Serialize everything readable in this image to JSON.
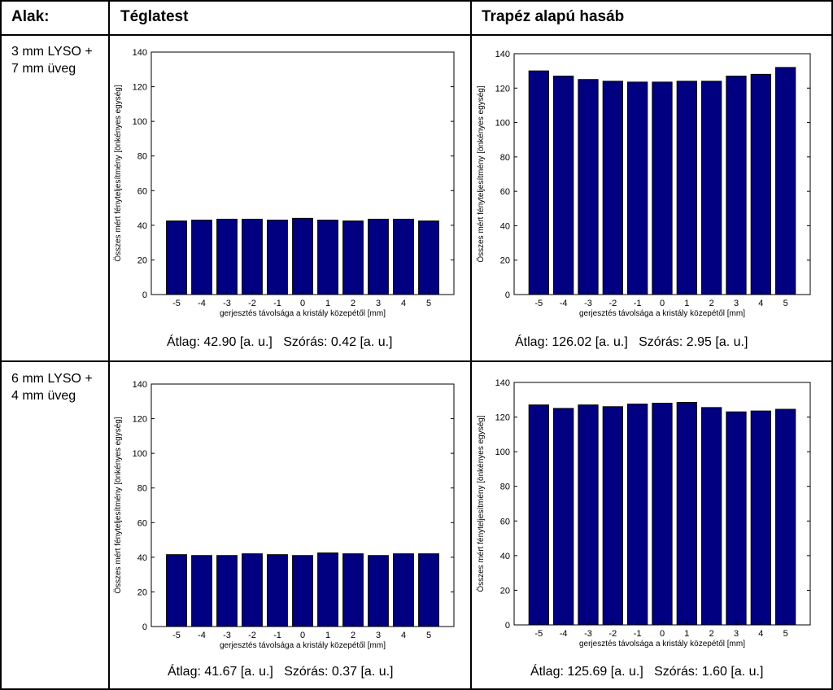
{
  "table": {
    "header_shape": "Alak:",
    "header_col1": "Téglatest",
    "header_col2": "Trapéz alapú hasáb",
    "row1_shape_line1": "3 mm LYSO +",
    "row1_shape_line2": "7 mm üveg",
    "row2_shape_line1": "6 mm LYSO +",
    "row2_shape_line2": "4 mm üveg"
  },
  "stats": {
    "r1c1": "Átlag: 42.90 [a. u.]   Szórás: 0.42 [a. u.]",
    "r1c2": "Átlag: 126.02 [a. u.]   Szórás: 2.95 [a. u.]",
    "r2c1": "Átlag: 41.67 [a. u.]   Szórás: 0.37 [a. u.]",
    "r2c2": "Átlag: 125.69 [a. u.]   Szórás: 1.60 [a. u.]"
  },
  "colors": {
    "bar_fill": "#000080",
    "bar_stroke": "#000000"
  },
  "chart_data": [
    {
      "type": "bar",
      "title": "",
      "xlabel": "gerjesztés távolsága a kristály közepétől [mm]",
      "ylabel": "Összes mért fényteljesítmény [önkényes egység]",
      "categories": [
        "-5",
        "-4",
        "-3",
        "-2",
        "-1",
        "0",
        "1",
        "2",
        "3",
        "4",
        "5"
      ],
      "values": [
        42.5,
        43.0,
        43.5,
        43.5,
        43.0,
        44.0,
        43.0,
        42.5,
        43.5,
        43.5,
        42.5
      ],
      "ylim": [
        0,
        140
      ],
      "yticks": [
        "0",
        "20",
        "40",
        "60",
        "80",
        "100",
        "120",
        "140"
      ]
    },
    {
      "type": "bar",
      "title": "",
      "xlabel": "gerjesztés távolsága a kristály közepétől [mm]",
      "ylabel": "Összes mért fényteljesítmény [önkényes egység]",
      "categories": [
        "-5",
        "-4",
        "-3",
        "-2",
        "-1",
        "0",
        "1",
        "2",
        "3",
        "4",
        "5"
      ],
      "values": [
        130,
        127,
        125,
        124,
        123.5,
        123.5,
        124,
        124,
        127,
        128,
        132
      ],
      "ylim": [
        0,
        140
      ],
      "yticks": [
        "0",
        "20",
        "40",
        "60",
        "80",
        "100",
        "120",
        "140"
      ]
    },
    {
      "type": "bar",
      "title": "",
      "xlabel": "gerjesztés távolsága a kristály közepétől [mm]",
      "ylabel": "Összes mért fényteljesítmény [önkényes egység]",
      "categories": [
        "-5",
        "-4",
        "-3",
        "-2",
        "-1",
        "0",
        "1",
        "2",
        "3",
        "4",
        "5"
      ],
      "values": [
        41.5,
        41.0,
        41.0,
        42.0,
        41.5,
        41.0,
        42.5,
        42.0,
        41.0,
        42.0,
        42.0
      ],
      "ylim": [
        0,
        140
      ],
      "yticks": [
        "0",
        "20",
        "40",
        "60",
        "80",
        "100",
        "120",
        "140"
      ]
    },
    {
      "type": "bar",
      "title": "",
      "xlabel": "gerjesztés távolsága a kristály közepétől [mm]",
      "ylabel": "Összes mért fényteljesítmény [önkényes egység]",
      "categories": [
        "-5",
        "-4",
        "-3",
        "-2",
        "-1",
        "0",
        "1",
        "2",
        "3",
        "4",
        "5"
      ],
      "values": [
        127,
        125,
        127,
        126,
        127.5,
        128,
        128.5,
        125.5,
        123,
        123.5,
        124.5
      ],
      "ylim": [
        0,
        140
      ],
      "yticks": [
        "0",
        "20",
        "40",
        "60",
        "80",
        "100",
        "120",
        "140"
      ]
    }
  ]
}
